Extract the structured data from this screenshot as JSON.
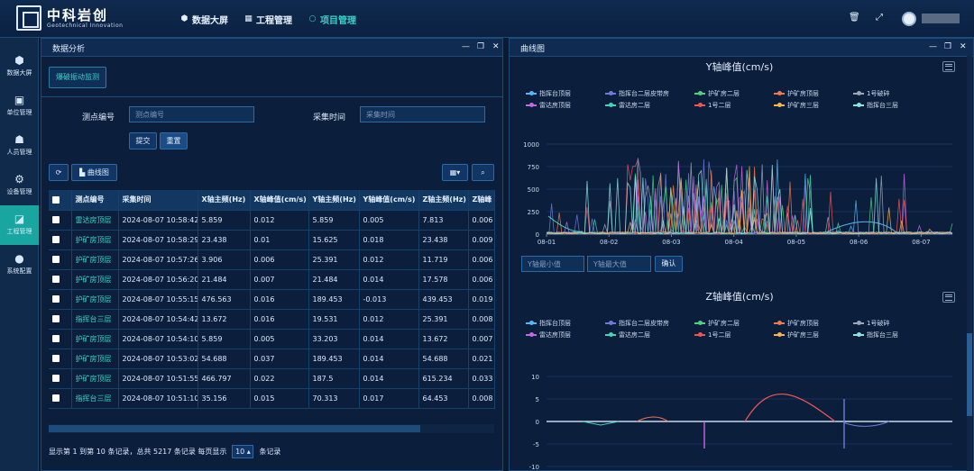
{
  "header": {
    "brand": "中科岩创",
    "brand_sub": "Geotechnical Innovation",
    "nav": [
      {
        "label": "数据大屏",
        "icon": "cube-icon",
        "active": false
      },
      {
        "label": "工程管理",
        "icon": "building-icon",
        "active": false
      },
      {
        "label": "项目管理",
        "icon": "circle-icon",
        "active": true
      }
    ],
    "tools": [
      "trash-icon",
      "fullscreen-icon"
    ]
  },
  "sidebar": {
    "items": [
      {
        "label": "数据大屏",
        "icon": "cube-icon"
      },
      {
        "label": "单位管理",
        "icon": "calendar-icon"
      },
      {
        "label": "人员管理",
        "icon": "person-icon"
      },
      {
        "label": "设备管理",
        "icon": "gear-icon"
      },
      {
        "label": "工程管理",
        "icon": "chart-icon",
        "active": true
      },
      {
        "label": "系统配置",
        "icon": "dots-icon"
      }
    ]
  },
  "left_panel": {
    "title": "数据分析",
    "tab_button": "爆破振动监测",
    "filters": {
      "point_label": "测点编号",
      "point_placeholder": "测点编号",
      "time_label": "采集时间",
      "time_placeholder": "采集时间",
      "submit": "提交",
      "reset": "重置"
    },
    "toolbar": {
      "refresh_icon": "refresh-icon",
      "curve_label": "曲线图"
    },
    "table": {
      "headers": [
        "测点编号",
        "采集时间",
        "X轴主频(Hz)",
        "X轴峰值(cm/s)",
        "Y轴主频(Hz)",
        "Y轴峰值(cm/s)",
        "Z轴主频(Hz)",
        "Z轴峰"
      ],
      "rows": [
        [
          "雷达房顶层",
          "2024-08-07 10:58:42",
          "5.859",
          "0.012",
          "5.859",
          "0.005",
          "7.813",
          "0.006"
        ],
        [
          "护矿房顶层",
          "2024-08-07 10:58:29",
          "23.438",
          "0.01",
          "15.625",
          "0.018",
          "23.438",
          "0.009"
        ],
        [
          "护矿房顶层",
          "2024-08-07 10:57:26",
          "3.906",
          "0.006",
          "25.391",
          "0.012",
          "11.719",
          "0.006"
        ],
        [
          "护矿房顶层",
          "2024-08-07 10:56:20",
          "21.484",
          "0.007",
          "21.484",
          "0.014",
          "17.578",
          "0.006"
        ],
        [
          "护矿房顶层",
          "2024-08-07 10:55:15",
          "476.563",
          "0.016",
          "189.453",
          "-0.013",
          "439.453",
          "0.019"
        ],
        [
          "指挥台三层",
          "2024-08-07 10:54:42",
          "13.672",
          "0.016",
          "19.531",
          "0.012",
          "25.391",
          "0.008"
        ],
        [
          "护矿房顶层",
          "2024-08-07 10:54:10",
          "5.859",
          "0.005",
          "33.203",
          "0.014",
          "13.672",
          "0.007"
        ],
        [
          "护矿房顶层",
          "2024-08-07 10:53:02",
          "54.688",
          "0.037",
          "189.453",
          "0.014",
          "54.688",
          "0.021"
        ],
        [
          "护矿房顶层",
          "2024-08-07 10:51:55",
          "466.797",
          "0.022",
          "187.5",
          "0.014",
          "615.234",
          "0.033"
        ],
        [
          "指挥台三层",
          "2024-08-07 10:51:10",
          "35.156",
          "0.015",
          "70.313",
          "0.017",
          "64.453",
          "0.008"
        ]
      ]
    },
    "footer": {
      "text_before": "显示第 1 到第 10 条记录，总共 5217 条记录 每页显示",
      "page_size": "10",
      "text_after": "条记录"
    }
  },
  "right_panel": {
    "title": "曲线图",
    "y_min_placeholder": "Y轴最小值",
    "y_max_placeholder": "Y轴最大值",
    "confirm": "确认"
  },
  "chart_data": [
    {
      "type": "line",
      "title": "Y轴峰值(cm/s)",
      "x": [
        "08-01",
        "08-02",
        "08-03",
        "08-04",
        "08-05",
        "08-06",
        "08-07"
      ],
      "ylim": [
        0,
        1000
      ],
      "yticks": [
        "0",
        "250",
        "500",
        "750",
        "1000"
      ],
      "legend_position": "top",
      "series": [
        {
          "name": "指挥台顶层",
          "color": "#58b6f0"
        },
        {
          "name": "指挥台二层皮带房",
          "color": "#6f7bd8"
        },
        {
          "name": "护矿房二层",
          "color": "#4cd17f"
        },
        {
          "name": "护矿房顶层",
          "color": "#f07a4d"
        },
        {
          "name": "1号破碎",
          "color": "#9aa6ba"
        },
        {
          "name": "雷达房顶层",
          "color": "#c468e0"
        },
        {
          "name": "雷达房二层",
          "color": "#45d5b6"
        },
        {
          "name": "1号二层",
          "color": "#ef5555"
        },
        {
          "name": "护矿房三层",
          "color": "#f3b451"
        },
        {
          "name": "指挥台三层",
          "color": "#8fe3e3"
        }
      ]
    },
    {
      "type": "line",
      "title": "Z轴峰值(cm/s)",
      "ylim": [
        -10,
        10
      ],
      "yticks": [
        "-10",
        "-5",
        "0",
        "5",
        "10"
      ],
      "legend_position": "top",
      "series": [
        {
          "name": "指挥台顶层",
          "color": "#58b6f0"
        },
        {
          "name": "指挥台二层皮带房",
          "color": "#6f7bd8"
        },
        {
          "name": "护矿房二层",
          "color": "#4cd17f"
        },
        {
          "name": "护矿房顶层",
          "color": "#f07a4d"
        },
        {
          "name": "1号破碎",
          "color": "#9aa6ba"
        },
        {
          "name": "雷达房顶层",
          "color": "#c468e0"
        },
        {
          "name": "雷达房二层",
          "color": "#45d5b6"
        },
        {
          "name": "1号二层",
          "color": "#ef5555"
        },
        {
          "name": "护矿房三层",
          "color": "#f3b451"
        },
        {
          "name": "指挥台三层",
          "color": "#8fe3e3"
        }
      ]
    }
  ]
}
